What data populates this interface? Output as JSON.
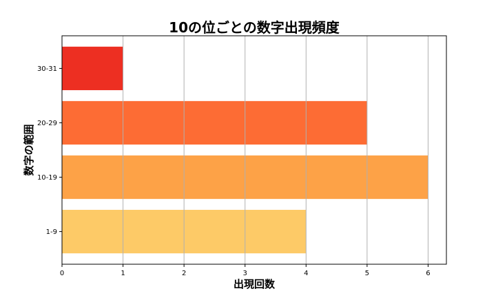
{
  "chart_data": {
    "type": "bar",
    "orientation": "horizontal",
    "title": "10の位ごとの数字出現頻度",
    "xlabel": "出現回数",
    "ylabel": "数字の範囲",
    "categories": [
      "1-9",
      "10-19",
      "20-29",
      "30-31"
    ],
    "values": [
      4,
      6,
      5,
      1
    ],
    "colors": [
      "#FDCA67",
      "#FDA247",
      "#FD6C34",
      "#ED2F22"
    ],
    "xlim": [
      0,
      6.3
    ],
    "xticks": [
      0,
      1,
      2,
      3,
      4,
      5,
      6
    ],
    "grid": "x"
  }
}
